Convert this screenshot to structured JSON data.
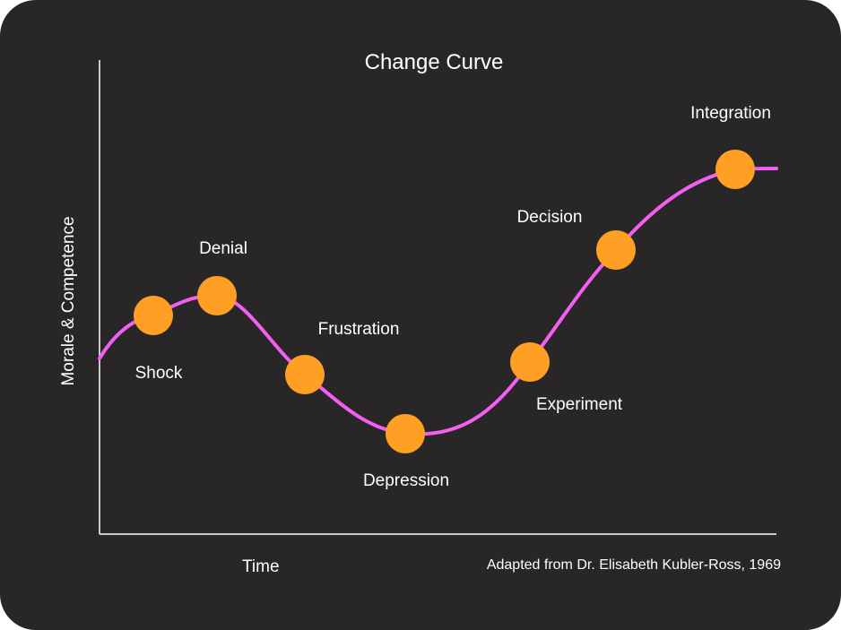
{
  "title": "Change Curve",
  "ylabel": "Morale & Competence",
  "xlabel": "Time",
  "credit": "Adapted from Dr. Elisabeth Kubler-Ross, 1969",
  "colors": {
    "background": "#282627",
    "curve": "#f25ff2",
    "marker": "#ffa024",
    "axis": "#ffffff",
    "text": "#ffffff"
  },
  "stages": [
    {
      "label": "Shock"
    },
    {
      "label": "Denial"
    },
    {
      "label": "Frustration"
    },
    {
      "label": "Depression"
    },
    {
      "label": "Experiment"
    },
    {
      "label": "Decision"
    },
    {
      "label": "Integration"
    }
  ]
}
